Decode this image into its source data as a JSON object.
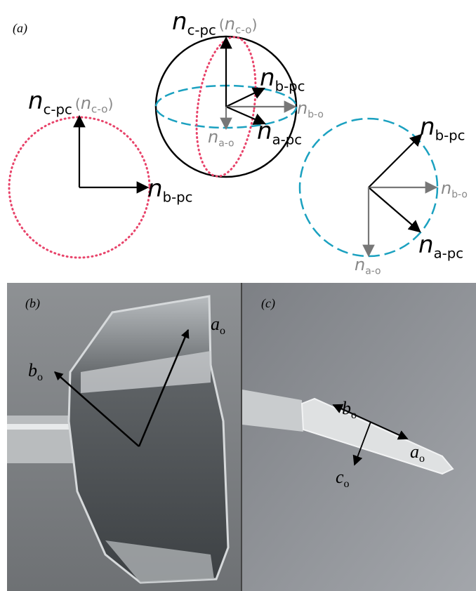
{
  "panel_a": {
    "label": "(a)",
    "left_circle": {
      "c_pc": {
        "symbol": "n",
        "sub": "c-pc",
        "alt_open": "(",
        "alt_symbol": "n",
        "alt_sub": "c-o",
        "alt_close": ")"
      },
      "b_pc": {
        "symbol": "n",
        "sub": "b-pc"
      }
    },
    "sphere": {
      "c_pc": {
        "symbol": "n",
        "sub": "c-pc",
        "alt_open": "(",
        "alt_symbol": "n",
        "alt_sub": "c-o",
        "alt_close": ")"
      },
      "b_pc": {
        "symbol": "n",
        "sub": "b-pc"
      },
      "b_o": {
        "symbol": "n",
        "sub": "b-o"
      },
      "a_pc": {
        "symbol": "n",
        "sub": "a-pc"
      },
      "a_o": {
        "symbol": "n",
        "sub": "a-o"
      }
    },
    "right_circle": {
      "b_pc": {
        "symbol": "n",
        "sub": "b-pc"
      },
      "b_o": {
        "symbol": "n",
        "sub": "b-o"
      },
      "a_pc": {
        "symbol": "n",
        "sub": "a-pc"
      },
      "a_o": {
        "symbol": "n",
        "sub": "a-o"
      }
    }
  },
  "panel_b": {
    "label": "(b)",
    "b_axis": {
      "symbol": "b",
      "sub": "o"
    },
    "a_axis": {
      "symbol": "a",
      "sub": "o"
    }
  },
  "panel_c": {
    "label": "(c)",
    "b_axis": {
      "symbol": "b",
      "sub": "o"
    },
    "a_axis": {
      "symbol": "a",
      "sub": "o"
    },
    "c_axis": {
      "symbol": "c",
      "sub": "o"
    }
  }
}
